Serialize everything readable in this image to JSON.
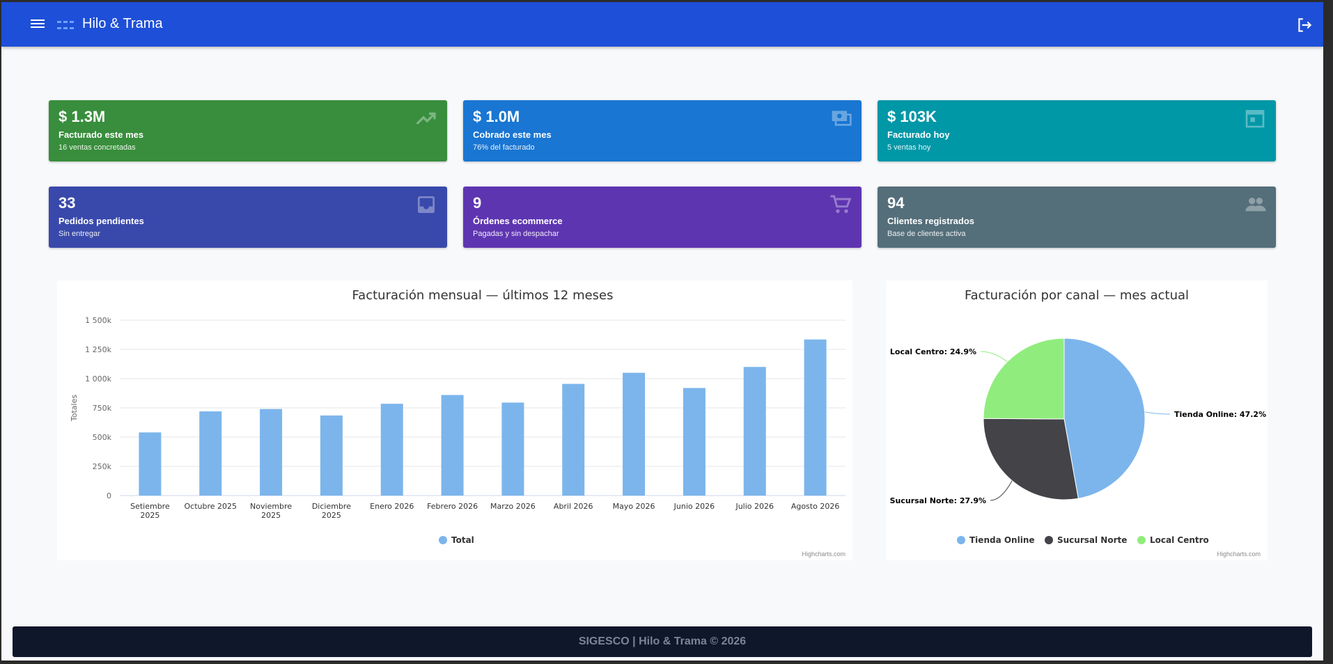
{
  "app": {
    "title": "Hilo & Trama"
  },
  "colors": {
    "topbar": "#1e4fd8",
    "green": "#388e3c",
    "blue": "#1976d2",
    "teal": "#0097a7",
    "indigo": "#3949ab",
    "purple": "#5e35b1",
    "slate": "#546e7a"
  },
  "cards": [
    {
      "value": "$ 1.3M",
      "label": "Facturado este mes",
      "sub": "16 ventas concretadas",
      "icon": "trending-up-icon"
    },
    {
      "value": "$ 1.0M",
      "label": "Cobrado este mes",
      "sub": "76% del facturado",
      "icon": "payments-icon"
    },
    {
      "value": "$ 103K",
      "label": "Facturado hoy",
      "sub": "5 ventas hoy",
      "icon": "calendar-icon"
    },
    {
      "value": "33",
      "label": "Pedidos pendientes",
      "sub": "Sin entregar",
      "icon": "inbox-icon"
    },
    {
      "value": "9",
      "label": "Órdenes ecommerce",
      "sub": "Pagadas y sin despachar",
      "icon": "cart-icon"
    },
    {
      "value": "94",
      "label": "Clientes registrados",
      "sub": "Base de clientes activa",
      "icon": "people-icon"
    }
  ],
  "chart_data": [
    {
      "type": "bar",
      "title": "Facturación mensual — últimos 12 meses",
      "ylabel": "Totales",
      "ylim": [
        0,
        1500000
      ],
      "yticks": [
        "0",
        "250k",
        "500k",
        "750k",
        "1 000k",
        "1 250k",
        "1 500k"
      ],
      "categories": [
        "Setiembre 2025",
        "Octubre 2025",
        "Noviembre 2025",
        "Diciembre 2025",
        "Enero 2026",
        "Febrero 2026",
        "Marzo 2026",
        "Abril 2026",
        "Mayo 2026",
        "Junio 2026",
        "Julio 2026",
        "Agosto 2026"
      ],
      "series": [
        {
          "name": "Total",
          "color": "#7cb5ec",
          "values": [
            540000,
            720000,
            740000,
            685000,
            785000,
            860000,
            795000,
            955000,
            1050000,
            920000,
            1100000,
            1335000
          ]
        }
      ],
      "legend": "bottom-center",
      "credit": "Highcharts.com"
    },
    {
      "type": "pie",
      "title": "Facturación por canal — mes actual",
      "slices": [
        {
          "name": "Tienda Online",
          "value": 47.2,
          "label": "Tienda Online: 47.2%",
          "color": "#7cb5ec"
        },
        {
          "name": "Sucursal Norte",
          "value": 27.9,
          "label": "Sucursal Norte: 27.9%",
          "color": "#434348"
        },
        {
          "name": "Local Centro",
          "value": 24.9,
          "label": "Local Centro: 24.9%",
          "color": "#90ed7d"
        }
      ],
      "legend": "bottom-center",
      "credit": "Highcharts.com"
    }
  ],
  "footer": {
    "text": "SIGESCO | Hilo & Trama © 2026"
  }
}
